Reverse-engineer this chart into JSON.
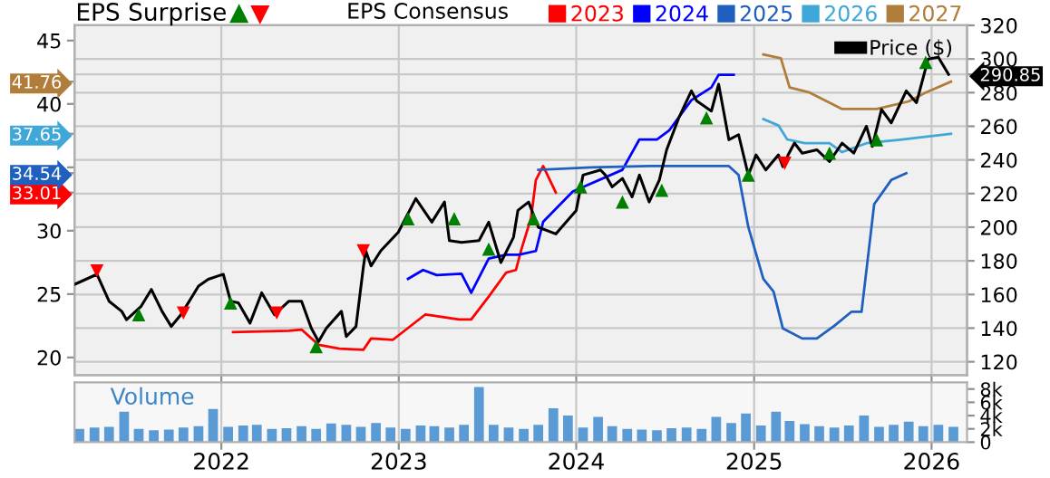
{
  "chart_data": [
    {
      "type": "line",
      "legend_title": "EPS Consensus",
      "annotations": [
        "EPS Surprise"
      ],
      "xlim": [
        "2021-03-05",
        "2026-03-15"
      ],
      "xticks": [
        {
          "value": "2022",
          "label": null
        },
        {
          "value": "2023",
          "label": null
        },
        {
          "value": "2024",
          "label": null
        },
        {
          "value": "2025",
          "label": null
        },
        {
          "value": "2026",
          "label": null
        }
      ],
      "ylim": [
        18.6,
        46.2
      ],
      "yticks": [
        20,
        25,
        30,
        33.01,
        34.54,
        {
          "value": 35,
          "label": null
        },
        37.65,
        40,
        41.76,
        45
      ],
      "y2lim": [
        112,
        320
      ],
      "y2ticks": [
        120,
        140,
        160,
        180,
        200,
        220,
        240,
        260,
        280,
        290.85,
        300,
        320
      ],
      "grid": true,
      "legend": "top",
      "tick_labels": "y",
      "marker": "none",
      "series": [
        {
          "name": "2023",
          "color": "#ff0000",
          "x": [
            "2022-01-25",
            "2022-05-20",
            "2022-06-15",
            "2022-07-20",
            "2022-09-01",
            "2022-10-20",
            "2022-11-05",
            "2022-12-20",
            "2023-02-25",
            "2023-05-05",
            "2023-05-30",
            "2023-07-05",
            "2023-08-10",
            "2023-08-30",
            "2023-09-10",
            "2023-09-30",
            "2023-10-10",
            "2023-10-25",
            "2023-11-20"
          ],
          "values": [
            22.0,
            22.1,
            22.2,
            21.0,
            20.7,
            20.6,
            21.5,
            21.4,
            23.4,
            23.0,
            23.0,
            24.8,
            26.7,
            26.9,
            28.5,
            31.0,
            34.0,
            35.1,
            33.01
          ]
        },
        {
          "name": "2024",
          "color": "#0000ff",
          "x": [
            "2023-01-20",
            "2023-02-20",
            "2023-03-20",
            "2023-05-10",
            "2023-05-30",
            "2023-07-05",
            "2023-08-10",
            "2023-09-05",
            "2023-10-10",
            "2023-10-25",
            "2023-12-25",
            "2024-04-05",
            "2024-05-10",
            "2024-06-15",
            "2024-07-10",
            "2024-08-25",
            "2024-10-05",
            "2024-10-20",
            "2024-11-20"
          ],
          "values": [
            26.2,
            26.9,
            26.5,
            26.6,
            25.1,
            27.8,
            28.1,
            28.1,
            28.4,
            30.7,
            33.1,
            34.8,
            37.2,
            37.2,
            37.9,
            40.3,
            41.3,
            42.3,
            42.3
          ]
        },
        {
          "name": "2025",
          "color": "#1f5fbf",
          "x": [
            "2023-10-15",
            "2024-02-01",
            "2024-06-01",
            "2024-11-10",
            "2024-11-30",
            "2024-12-20",
            "2025-01-20",
            "2025-02-10",
            "2025-03-01",
            "2025-04-10",
            "2025-05-10",
            "2025-06-15",
            "2025-07-20",
            "2025-08-10",
            "2025-09-05",
            "2025-10-10",
            "2025-11-10"
          ],
          "values": [
            34.8,
            35.0,
            35.1,
            35.1,
            34.4,
            30.3,
            26.2,
            25.2,
            22.3,
            21.5,
            21.5,
            22.5,
            23.6,
            23.6,
            32.1,
            34.0,
            34.54
          ]
        },
        {
          "name": "2026",
          "color": "#40a8d8",
          "x": [
            "2025-01-20",
            "2025-02-20",
            "2025-03-10",
            "2025-04-15",
            "2025-06-05",
            "2025-07-01",
            "2025-08-20",
            "2025-11-01",
            "2026-02-10"
          ],
          "values": [
            38.8,
            38.3,
            37.2,
            36.9,
            36.9,
            36.2,
            36.9,
            37.2,
            37.65
          ]
        },
        {
          "name": "2027",
          "color": "#b07d3a",
          "x": [
            "2025-01-20",
            "2025-02-25",
            "2025-03-15",
            "2025-04-25",
            "2025-07-01",
            "2025-09-10",
            "2025-11-15",
            "2025-12-20",
            "2026-02-10"
          ],
          "values": [
            43.9,
            43.6,
            41.3,
            40.9,
            39.6,
            39.6,
            40.2,
            40.9,
            41.76
          ]
        },
        {
          "name": "Price ($)",
          "color": "#000000",
          "axis": "y2",
          "x": [
            "2021-03-05",
            "2021-04-20",
            "2021-05-15",
            "2021-06-10",
            "2021-06-20",
            "2021-07-20",
            "2021-08-10",
            "2021-09-01",
            "2021-09-20",
            "2021-10-10",
            "2021-11-15",
            "2021-12-05",
            "2021-12-25",
            "2022-01-05",
            "2022-01-20",
            "2022-02-05",
            "2022-03-01",
            "2022-03-25",
            "2022-04-20",
            "2022-05-20",
            "2022-06-15",
            "2022-07-05",
            "2022-07-20",
            "2022-08-05",
            "2022-09-05",
            "2022-09-15",
            "2022-10-05",
            "2022-10-20",
            "2022-10-25",
            "2022-11-05",
            "2022-11-25",
            "2022-12-31",
            "2023-02-05",
            "2023-03-10",
            "2023-04-05",
            "2023-04-15",
            "2023-05-10",
            "2023-06-15",
            "2023-07-05",
            "2023-07-30",
            "2023-08-25",
            "2023-09-03",
            "2023-09-25",
            "2023-10-15",
            "2023-11-20",
            "2024-01-01",
            "2024-01-15",
            "2024-02-20",
            "2024-03-01",
            "2024-03-15",
            "2024-04-05",
            "2024-04-25",
            "2024-05-10",
            "2024-05-30",
            "2024-06-20",
            "2024-07-05",
            "2024-07-30",
            "2024-08-25",
            "2024-09-05",
            "2024-10-05",
            "2024-10-20",
            "2024-11-10",
            "2024-11-30",
            "2024-12-20",
            "2025-01-05",
            "2025-01-25",
            "2025-02-20",
            "2025-03-01",
            "2025-03-12",
            "2025-03-25",
            "2025-04-10",
            "2025-05-10",
            "2025-06-05",
            "2025-07-01",
            "2025-07-25",
            "2025-08-20",
            "2025-09-01",
            "2025-09-20",
            "2025-10-10",
            "2025-11-10",
            "2025-12-01",
            "2025-12-25",
            "2026-01-15",
            "2026-02-05"
          ],
          "values": [
            166,
            172,
            156,
            150,
            145,
            153,
            163,
            150,
            141,
            148,
            165,
            169,
            171,
            172,
            156,
            155,
            143,
            161,
            148,
            156,
            156,
            140,
            132,
            140,
            150,
            135,
            141,
            176,
            186,
            177,
            186,
            197,
            217,
            203,
            215,
            192,
            191,
            192,
            203,
            179,
            194,
            210,
            215,
            200,
            196,
            210,
            231,
            234,
            231,
            224,
            229,
            218,
            231,
            215,
            228,
            246,
            265,
            281,
            275,
            269,
            285,
            252,
            255,
            231,
            243,
            234,
            243,
            236,
            243,
            250,
            244,
            246,
            239,
            250,
            244,
            260,
            248,
            270,
            262,
            281,
            274,
            300,
            301,
            290.85
          ]
        },
        {
          "type": "scatter",
          "color": "#008000",
          "axis": "y2",
          "marker": "triangle",
          "x": [
            "2021-07-15",
            "2022-01-20",
            "2022-07-15",
            "2023-01-20",
            "2023-04-25",
            "2023-07-05",
            "2023-10-05",
            "2024-01-10",
            "2024-04-05",
            "2024-06-25",
            "2024-09-25",
            "2024-12-20",
            "2025-06-05",
            "2025-09-10",
            "2025-12-20"
          ],
          "values": [
            148,
            155,
            129,
            205,
            205,
            187,
            205,
            224,
            215,
            222,
            265,
            231,
            244,
            252,
            298
          ]
        },
        {
          "type": "scatter",
          "color": "#ff0000",
          "axis": "y2",
          "marker": "triangle-down",
          "x": [
            "2021-04-20",
            "2021-10-15",
            "2022-04-25",
            "2022-10-20",
            "2025-03-05"
          ],
          "values": [
            174,
            149,
            149,
            186,
            238
          ]
        }
      ]
    },
    {
      "type": "bar",
      "annotations": [
        "Volume"
      ],
      "color": "#5b9bd5",
      "xlim": [
        "2021-03-05",
        "2026-03-15"
      ],
      "xticks": [
        "2022",
        "2023",
        "2024",
        "2025",
        "2026"
      ],
      "ylim": [
        0,
        9
      ],
      "yticks": [
        {
          "value": 0,
          "label": "0"
        },
        {
          "value": 2,
          "label": "2k"
        },
        {
          "value": 4,
          "label": "4k"
        },
        {
          "value": 6,
          "label": "6k"
        },
        {
          "value": 8,
          "label": "8k"
        }
      ],
      "grid": "x",
      "x": [
        "2021-03-15",
        "2021-04-15",
        "2021-05-15",
        "2021-06-15",
        "2021-07-15",
        "2021-08-15",
        "2021-09-15",
        "2021-10-15",
        "2021-11-15",
        "2021-12-15",
        "2022-01-15",
        "2022-02-15",
        "2022-03-15",
        "2022-04-15",
        "2022-05-15",
        "2022-06-15",
        "2022-07-15",
        "2022-08-15",
        "2022-09-15",
        "2022-10-15",
        "2022-11-15",
        "2022-12-15",
        "2023-01-15",
        "2023-02-15",
        "2023-03-15",
        "2023-04-15",
        "2023-05-15",
        "2023-06-15",
        "2023-07-15",
        "2023-08-15",
        "2023-09-15",
        "2023-10-15",
        "2023-11-15",
        "2023-12-15",
        "2024-01-15",
        "2024-02-15",
        "2024-03-15",
        "2024-04-15",
        "2024-05-15",
        "2024-06-15",
        "2024-07-15",
        "2024-08-15",
        "2024-09-15",
        "2024-10-15",
        "2024-11-15",
        "2024-12-15",
        "2025-01-15",
        "2025-02-15",
        "2025-03-15",
        "2025-04-15",
        "2025-05-15",
        "2025-06-15",
        "2025-07-15",
        "2025-08-15",
        "2025-09-15",
        "2025-10-15",
        "2025-11-15",
        "2025-12-15",
        "2026-01-15",
        "2026-02-15"
      ],
      "values": [
        2.0,
        2.2,
        2.3,
        4.6,
        2.0,
        1.8,
        1.9,
        2.2,
        2.4,
        5.0,
        2.3,
        2.5,
        2.6,
        2.0,
        2.1,
        2.4,
        2.0,
        2.8,
        2.6,
        2.3,
        2.9,
        2.2,
        2.0,
        2.5,
        2.4,
        2.2,
        2.6,
        8.3,
        2.6,
        2.2,
        2.0,
        2.6,
        5.1,
        4.0,
        2.2,
        3.8,
        2.4,
        2.0,
        1.9,
        1.8,
        2.1,
        2.2,
        2.0,
        3.8,
        2.9,
        4.3,
        2.5,
        4.6,
        3.2,
        2.7,
        2.4,
        2.2,
        2.5,
        4.0,
        2.3,
        2.6,
        3.1,
        2.4,
        2.6,
        2.3
      ]
    }
  ]
}
